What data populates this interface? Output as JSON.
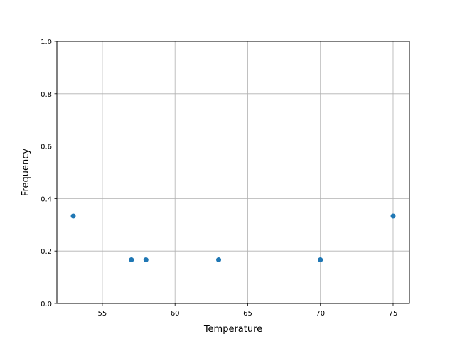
{
  "chart_data": {
    "type": "scatter",
    "title": "",
    "xlabel": "Temperature",
    "ylabel": "Frequency",
    "x": [
      53,
      57,
      58,
      63,
      70,
      75
    ],
    "y": [
      0.3333,
      0.1667,
      0.1667,
      0.1667,
      0.1667,
      0.3333
    ],
    "xlim": [
      51.875,
      76.125
    ],
    "ylim": [
      0,
      1
    ],
    "xticks": [
      55,
      60,
      65,
      70,
      75
    ],
    "xtick_labels": [
      "55",
      "60",
      "65",
      "70",
      "75"
    ],
    "yticks": [
      0,
      0.2,
      0.4,
      0.6,
      0.8,
      1.0
    ],
    "ytick_labels": [
      "0.0",
      "0.2",
      "0.4",
      "0.6",
      "0.8",
      "1.0"
    ],
    "grid": true,
    "marker_color": "#1f77b4",
    "grid_color": "#b0b0b0"
  }
}
